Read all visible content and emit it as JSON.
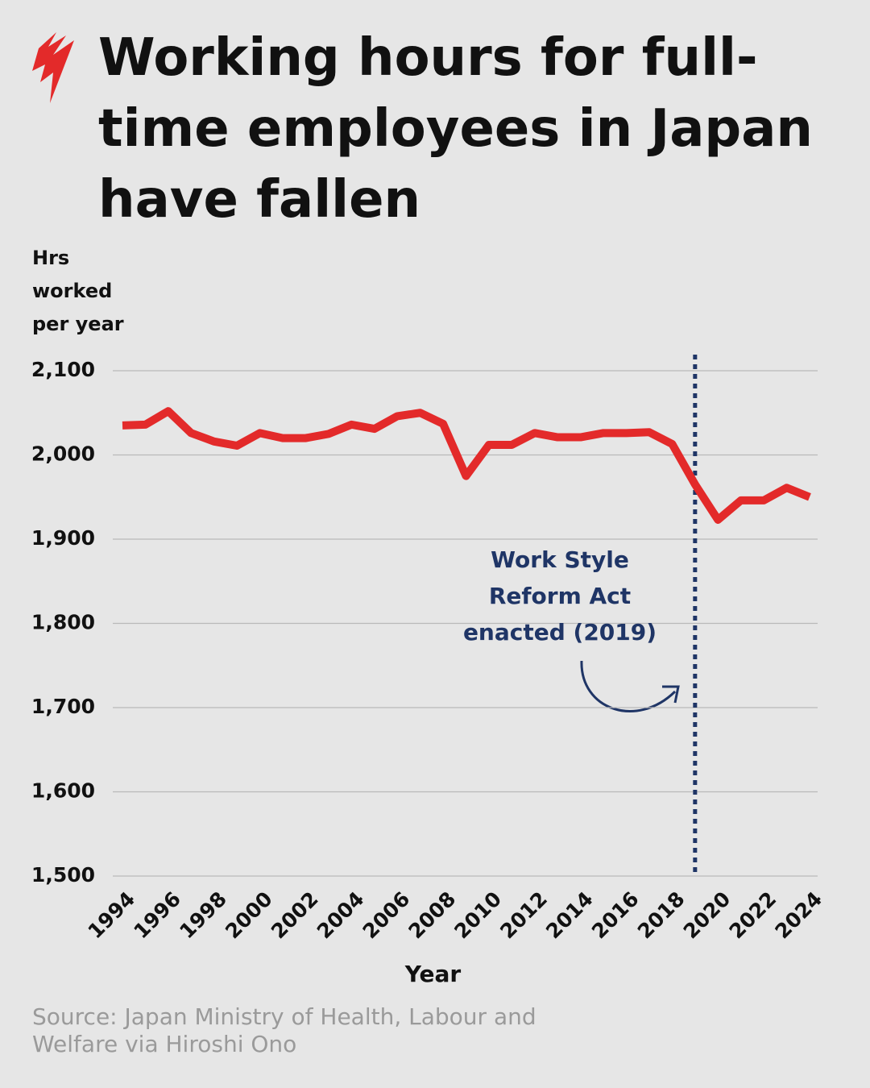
{
  "chart_data": {
    "type": "line",
    "title": "Working hours for full-time employees in Japan have fallen",
    "y_label": "Hrs worked per year",
    "x_label": "Year",
    "source": "Source: Japan Ministry of Health, Labour and Welfare via Hiroshi Ono",
    "x": [
      1994,
      1995,
      1996,
      1997,
      1998,
      1999,
      2000,
      2001,
      2002,
      2003,
      2004,
      2005,
      2006,
      2007,
      2008,
      2009,
      2010,
      2011,
      2012,
      2013,
      2014,
      2015,
      2016,
      2017,
      2018,
      2019,
      2020,
      2021,
      2022,
      2023,
      2024
    ],
    "series": [
      {
        "color": "#e32a2a",
        "values": [
          2035,
          2036,
          2052,
          2026,
          2016,
          2011,
          2026,
          2020,
          2020,
          2025,
          2036,
          2031,
          2046,
          2050,
          2037,
          1975,
          2012,
          2012,
          2026,
          2021,
          2021,
          2026,
          2026,
          2027,
          2013,
          1965,
          1923,
          1946,
          1946,
          1961,
          1950
        ]
      }
    ],
    "xlim": [
      1994,
      2024
    ],
    "xticks": [
      1994,
      1996,
      1998,
      2000,
      2002,
      2004,
      2006,
      2008,
      2010,
      2012,
      2014,
      2016,
      2018,
      2020,
      2022,
      2024
    ],
    "ylim": [
      1500,
      2100
    ],
    "yticks": [
      {
        "value": 1500,
        "label": "1,500"
      },
      {
        "value": 1600,
        "label": "1,600"
      },
      {
        "value": 1700,
        "label": "1,700"
      },
      {
        "value": 1800,
        "label": "1,800"
      },
      {
        "value": 1900,
        "label": "1,900"
      },
      {
        "value": 2000,
        "label": "2,000"
      },
      {
        "value": 2100,
        "label": "2,100"
      }
    ],
    "grid": true,
    "annotation": {
      "text": "Work Style Reform Act enacted (2019)",
      "x": 2019,
      "color": "#1f3566"
    }
  }
}
